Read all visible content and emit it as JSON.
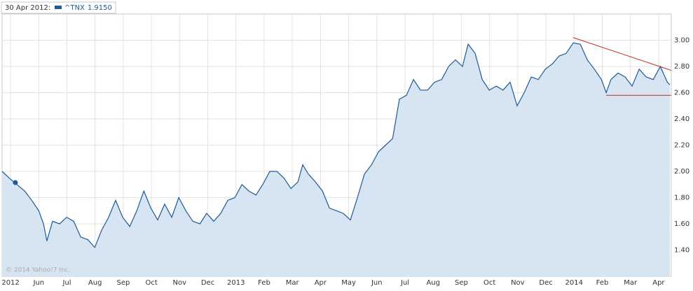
{
  "chart_data": {
    "type": "area",
    "hover": {
      "date": "30 Apr 2012:",
      "x": 0.17,
      "value": 1.915,
      "value_label": "1.9150"
    },
    "watermark": "© 2014 Yahoo!7 Inc.",
    "xlim": [
      -0.3,
      23.45
    ],
    "ylim": [
      1.2,
      3.2
    ],
    "grid": true,
    "xticks": [
      {
        "value": 0,
        "label": "2012"
      },
      {
        "value": 1,
        "label": "Jun"
      },
      {
        "value": 2,
        "label": "Jul"
      },
      {
        "value": 3,
        "label": "Aug"
      },
      {
        "value": 4,
        "label": "Sep"
      },
      {
        "value": 5,
        "label": "Oct"
      },
      {
        "value": 6,
        "label": "Nov"
      },
      {
        "value": 7,
        "label": "Dec"
      },
      {
        "value": 8,
        "label": "2013"
      },
      {
        "value": 9,
        "label": "Feb"
      },
      {
        "value": 10,
        "label": "Mar"
      },
      {
        "value": 11,
        "label": "Apr"
      },
      {
        "value": 12,
        "label": "May"
      },
      {
        "value": 13,
        "label": "Jun"
      },
      {
        "value": 14,
        "label": "Jul"
      },
      {
        "value": 15,
        "label": "Aug"
      },
      {
        "value": 16,
        "label": "Sep"
      },
      {
        "value": 17,
        "label": "Oct"
      },
      {
        "value": 18,
        "label": "Nov"
      },
      {
        "value": 19,
        "label": "Dec"
      },
      {
        "value": 20,
        "label": "2014"
      },
      {
        "value": 21,
        "label": "Feb"
      },
      {
        "value": 22,
        "label": "Mar"
      },
      {
        "value": 23,
        "label": "Apr"
      }
    ],
    "yticks": [
      {
        "value": 1.4,
        "label": "1.40"
      },
      {
        "value": 1.6,
        "label": "1.60"
      },
      {
        "value": 1.8,
        "label": "1.80"
      },
      {
        "value": 2.0,
        "label": "2.00"
      },
      {
        "value": 2.2,
        "label": "2.20"
      },
      {
        "value": 2.4,
        "label": "2.40"
      },
      {
        "value": 2.6,
        "label": "2.60"
      },
      {
        "value": 2.8,
        "label": "2.80"
      },
      {
        "value": 3.0,
        "label": "3.00"
      }
    ],
    "series": [
      {
        "name": "^TNX",
        "color": "#1f5a96",
        "fill": "#d6e5f1",
        "x": [
          -0.3,
          -0.05,
          0.17,
          0.5,
          0.75,
          1.0,
          1.17,
          1.29,
          1.49,
          1.74,
          1.99,
          2.24,
          2.49,
          2.74,
          2.99,
          3.23,
          3.48,
          3.73,
          3.98,
          4.23,
          4.48,
          4.73,
          4.98,
          5.22,
          5.47,
          5.72,
          5.97,
          6.22,
          6.47,
          6.72,
          6.96,
          7.21,
          7.46,
          7.71,
          7.96,
          8.21,
          8.46,
          8.71,
          8.95,
          9.2,
          9.45,
          9.7,
          9.95,
          10.2,
          10.37,
          10.57,
          10.82,
          11.07,
          11.32,
          11.57,
          11.81,
          12.06,
          12.31,
          12.56,
          12.81,
          13.06,
          13.31,
          13.56,
          13.8,
          14.05,
          14.3,
          14.55,
          14.8,
          15.05,
          15.3,
          15.55,
          15.79,
          16.04,
          16.24,
          16.49,
          16.74,
          16.99,
          17.24,
          17.48,
          17.73,
          17.98,
          18.23,
          18.48,
          18.73,
          18.98,
          19.23,
          19.47,
          19.72,
          19.97,
          20.22,
          20.47,
          20.72,
          20.97,
          21.14,
          21.31,
          21.56,
          21.81,
          22.06,
          22.31,
          22.56,
          22.81,
          23.06,
          23.31,
          23.4
        ],
        "values": [
          2.0,
          1.95,
          1.91,
          1.85,
          1.78,
          1.7,
          1.6,
          1.47,
          1.62,
          1.6,
          1.65,
          1.62,
          1.5,
          1.48,
          1.42,
          1.55,
          1.65,
          1.78,
          1.65,
          1.58,
          1.7,
          1.85,
          1.72,
          1.63,
          1.75,
          1.65,
          1.8,
          1.7,
          1.62,
          1.6,
          1.68,
          1.62,
          1.68,
          1.78,
          1.8,
          1.9,
          1.85,
          1.82,
          1.9,
          2.0,
          2.0,
          1.95,
          1.87,
          1.92,
          2.05,
          1.98,
          1.92,
          1.85,
          1.72,
          1.7,
          1.68,
          1.63,
          1.8,
          1.98,
          2.05,
          2.15,
          2.2,
          2.25,
          2.55,
          2.58,
          2.7,
          2.62,
          2.62,
          2.68,
          2.7,
          2.8,
          2.85,
          2.8,
          2.97,
          2.9,
          2.7,
          2.62,
          2.65,
          2.62,
          2.68,
          2.5,
          2.6,
          2.72,
          2.7,
          2.78,
          2.82,
          2.88,
          2.9,
          2.98,
          2.97,
          2.85,
          2.78,
          2.7,
          2.6,
          2.7,
          2.75,
          2.72,
          2.65,
          2.78,
          2.72,
          2.7,
          2.8,
          2.68,
          2.66
        ]
      }
    ],
    "trendlines": [
      {
        "color": "#c0282d",
        "x": [
          19.97,
          23.45
        ],
        "values": [
          3.02,
          2.77
        ]
      },
      {
        "color": "#c0282d",
        "x": [
          21.14,
          23.45
        ],
        "values": [
          2.58,
          2.58
        ]
      }
    ]
  }
}
